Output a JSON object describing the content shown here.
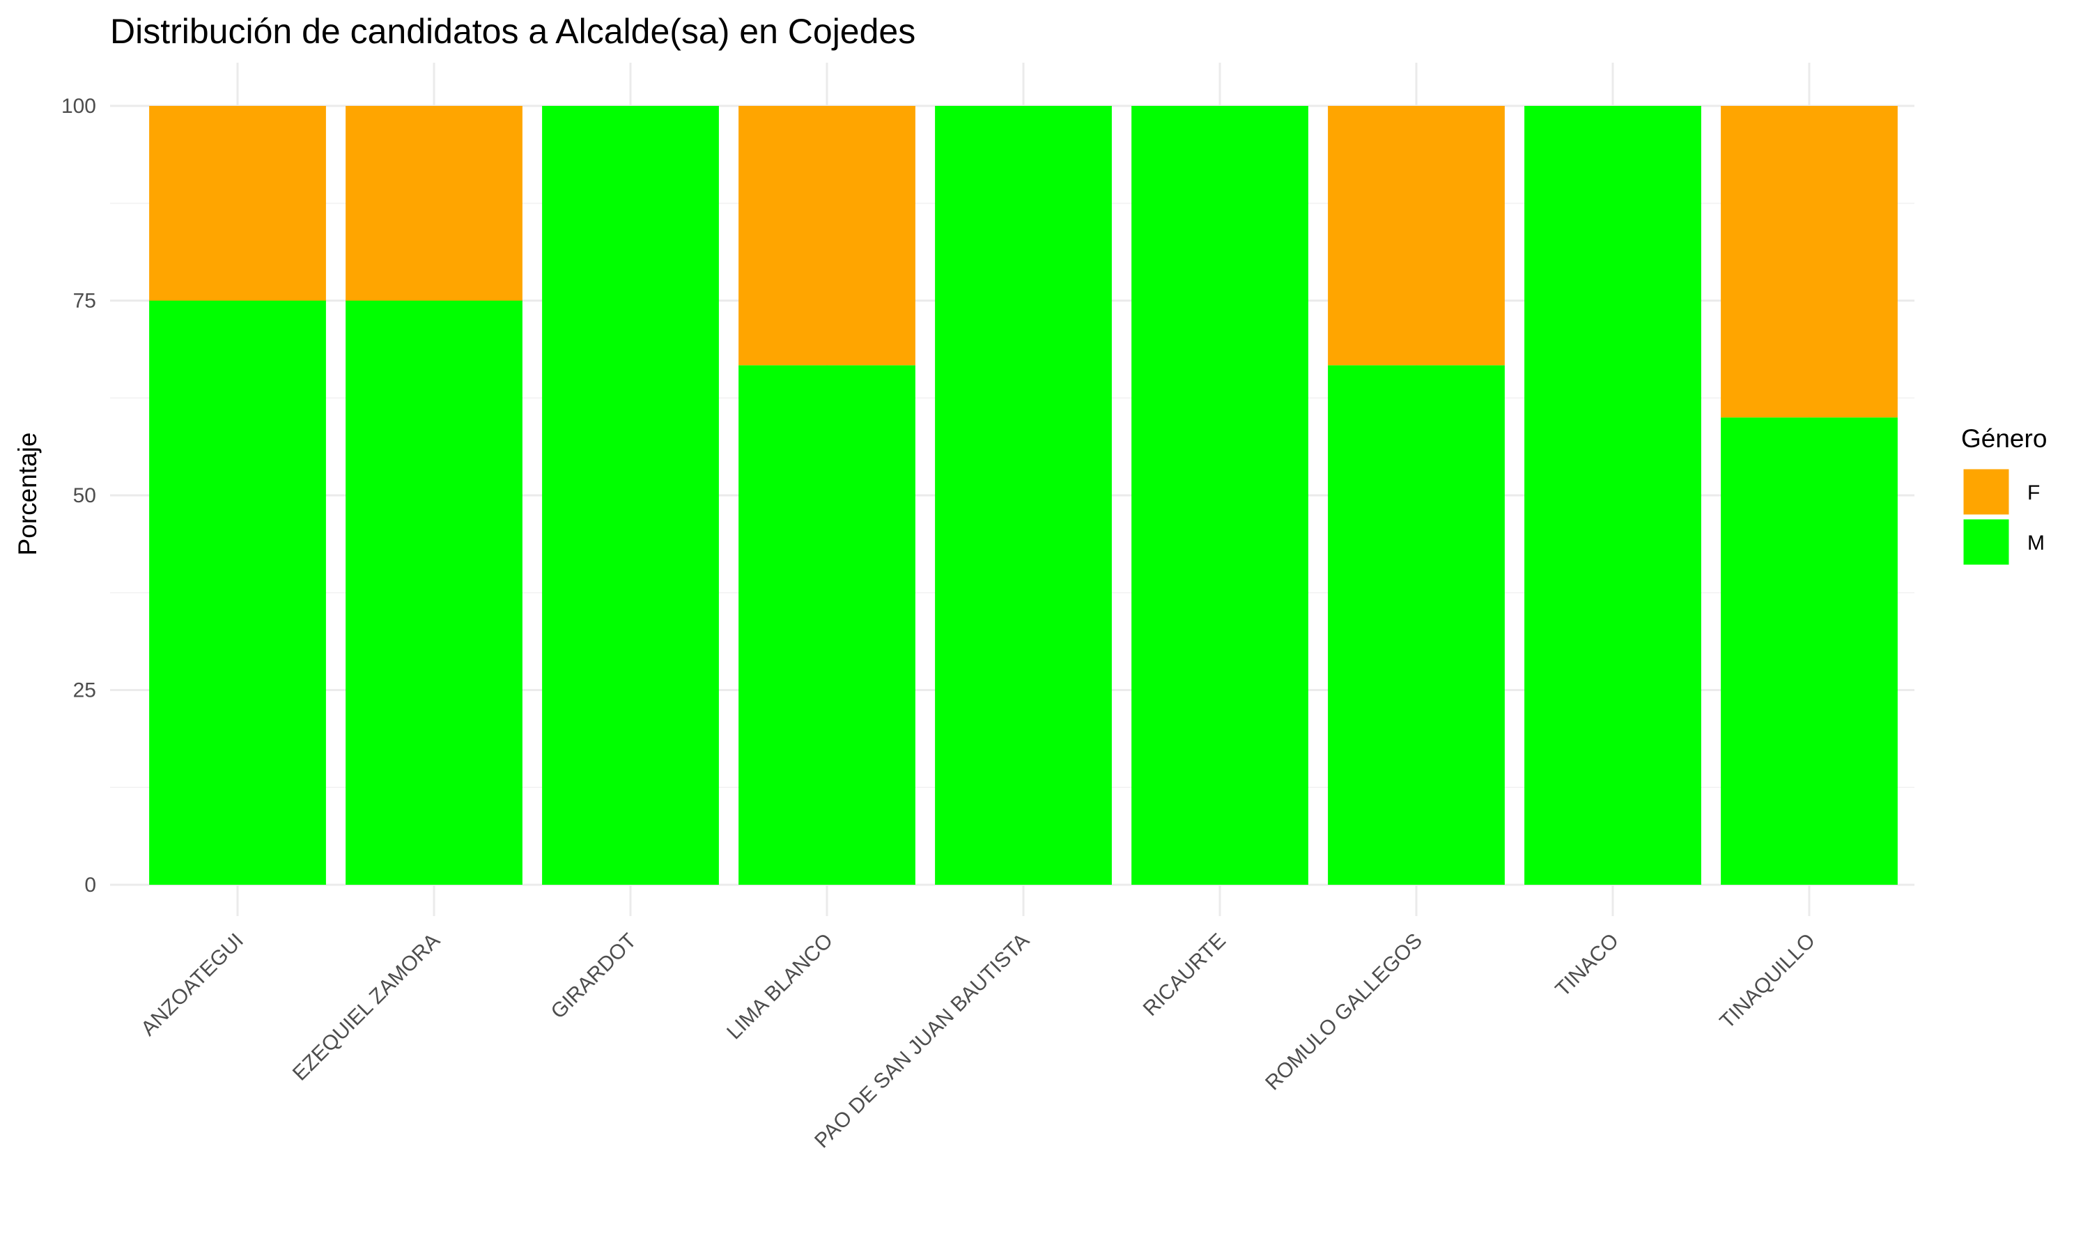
{
  "chart_data": {
    "type": "bar",
    "stacked": true,
    "title": "Distribución de candidatos a Alcalde(sa) en Cojedes",
    "xlabel": "",
    "ylabel": "Porcentaje",
    "ylim": [
      0,
      100
    ],
    "yticks": [
      0,
      25,
      50,
      75,
      100
    ],
    "grid": true,
    "legend": {
      "title": "Género",
      "position": "right"
    },
    "categories": [
      "ANZOATEGUI",
      "EZEQUIEL ZAMORA",
      "GIRARDOT",
      "LIMA BLANCO",
      "PAO DE SAN JUAN BAUTISTA",
      "RICAURTE",
      "ROMULO GALLEGOS",
      "TINACO",
      "TINAQUILLO"
    ],
    "series": [
      {
        "name": "F",
        "color": "#FFA500",
        "values": [
          25,
          25,
          0,
          33.3,
          0,
          0,
          33.3,
          0,
          40
        ]
      },
      {
        "name": "M",
        "color": "#00FF00",
        "values": [
          75,
          75,
          100,
          66.7,
          100,
          100,
          66.7,
          100,
          60
        ]
      }
    ]
  }
}
